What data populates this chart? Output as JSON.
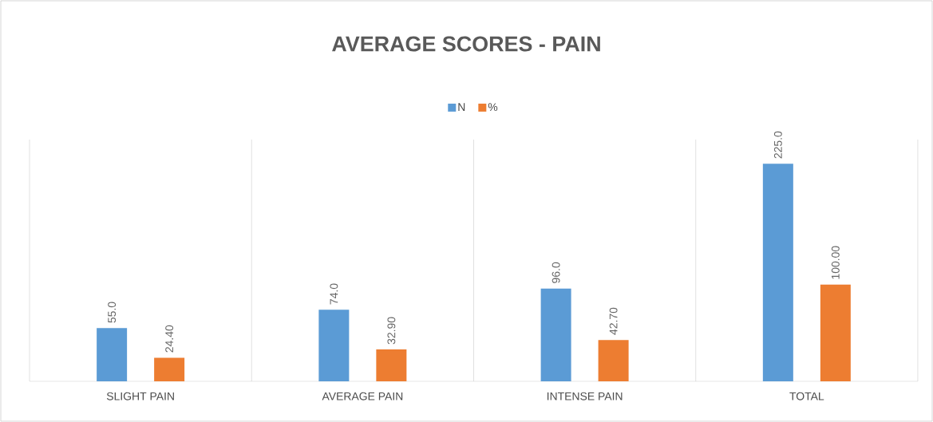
{
  "chart_data": {
    "type": "bar",
    "title": "AVERAGE SCORES - PAIN",
    "categories": [
      "SLIGHT PAIN",
      "AVERAGE PAIN",
      "INTENSE PAIN",
      "TOTAL"
    ],
    "series": [
      {
        "name": "N",
        "color": "#5b9bd5",
        "values": [
          55.0,
          74.0,
          96.0,
          225.0
        ],
        "value_labels": [
          "55.0",
          "74.0",
          "96.0",
          "225.0"
        ]
      },
      {
        "name": "%",
        "color": "#ed7d31",
        "values": [
          24.4,
          32.9,
          42.7,
          100.0
        ],
        "value_labels": [
          "24.40",
          "32.90",
          "42.70",
          "100.00"
        ]
      }
    ],
    "ylim": [
      0,
      250
    ],
    "tick_labels": "x",
    "grid": "x",
    "legend": "top"
  }
}
